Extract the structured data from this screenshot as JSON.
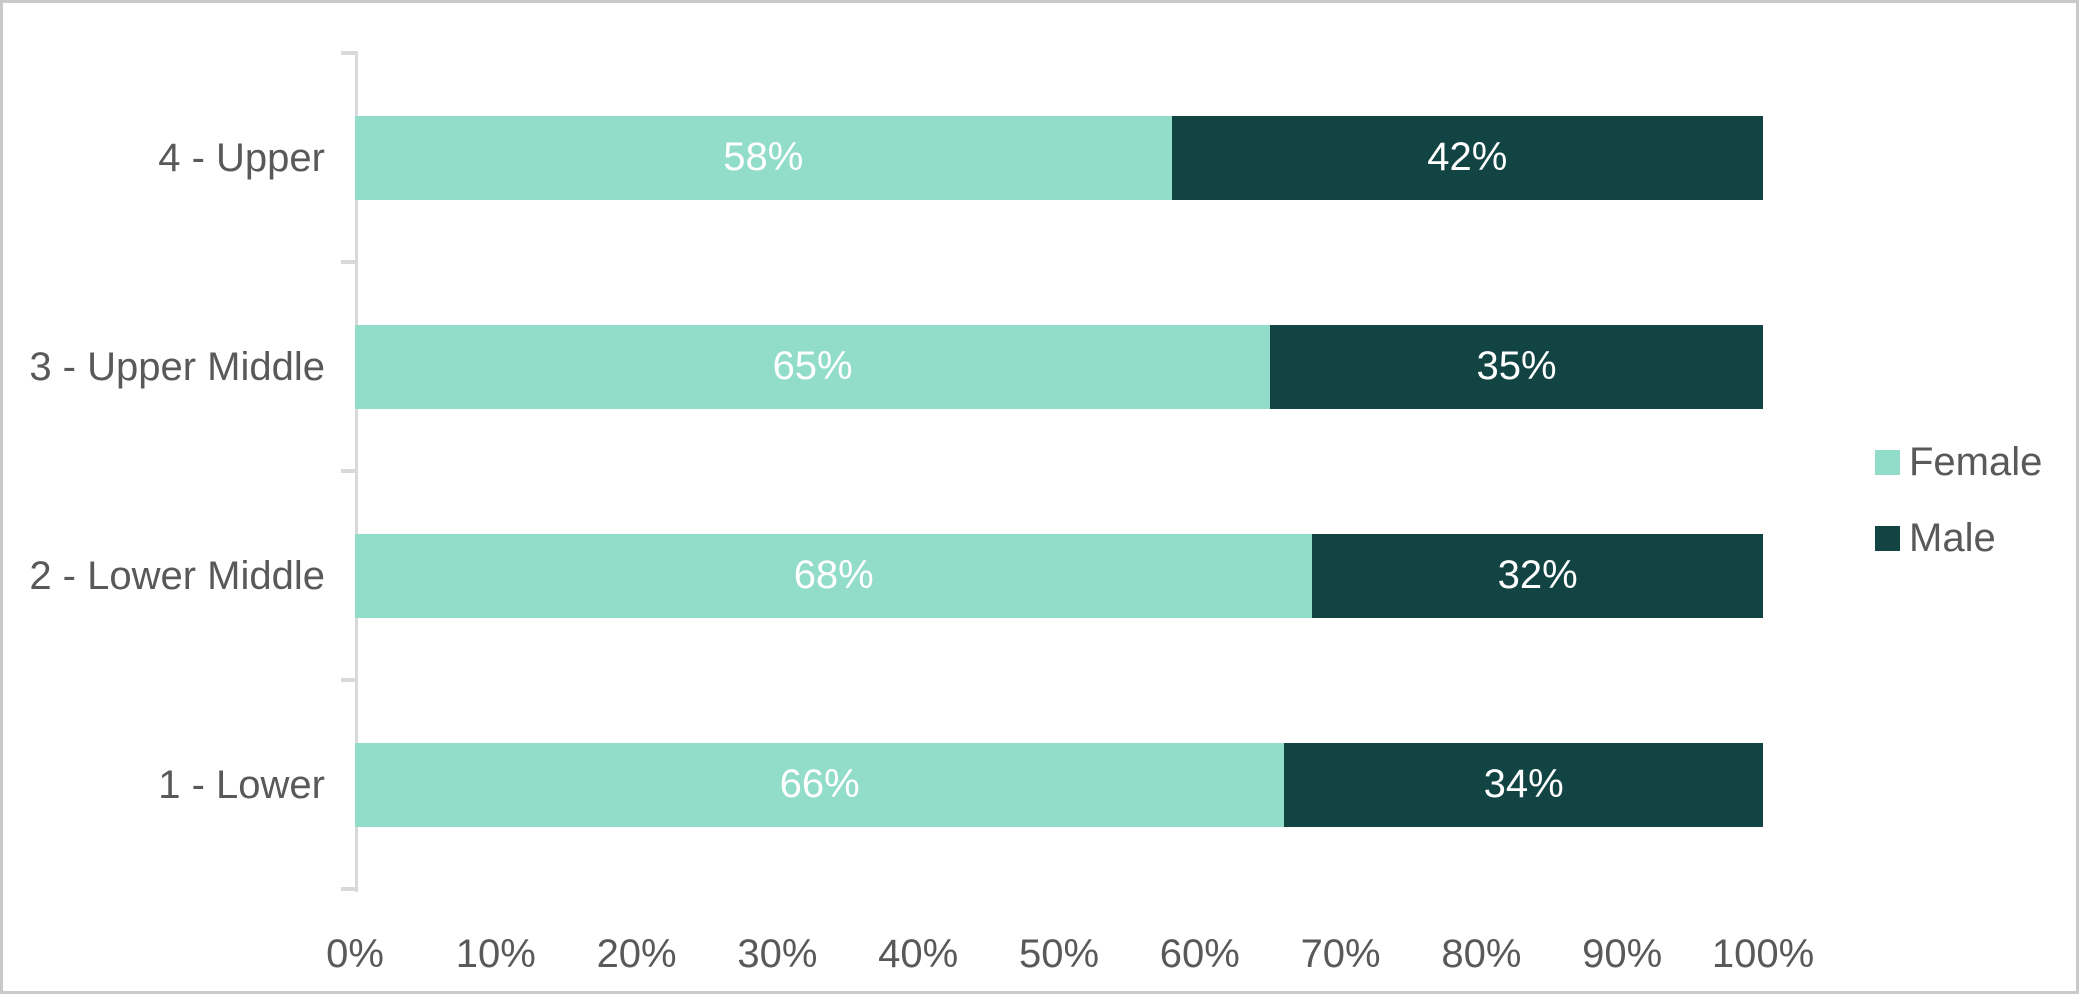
{
  "chart_data": {
    "type": "bar",
    "orientation": "horizontal",
    "stacked": true,
    "title": "",
    "xlabel": "",
    "ylabel": "",
    "categories": [
      "4 - Upper",
      "3 - Upper Middle",
      "2 - Lower Middle",
      "1 - Lower"
    ],
    "series": [
      {
        "name": "Female",
        "color": "#92DCCA",
        "values": [
          58,
          65,
          68,
          66
        ]
      },
      {
        "name": "Male",
        "color": "#114443",
        "values": [
          42,
          35,
          32,
          34
        ]
      }
    ],
    "value_suffix": "%",
    "x_ticks": [
      "0%",
      "10%",
      "20%",
      "30%",
      "40%",
      "50%",
      "60%",
      "70%",
      "80%",
      "90%",
      "100%"
    ],
    "xlim": [
      0,
      100
    ],
    "grid": false,
    "legend_position": "right",
    "data_labels": "inside-center",
    "data_label_color": "#ffffff",
    "axis_text_color": "#595959",
    "axis_line_color": "#d9d9d9",
    "background": "#ffffff",
    "frame_border_color": "#c9c9c9"
  }
}
